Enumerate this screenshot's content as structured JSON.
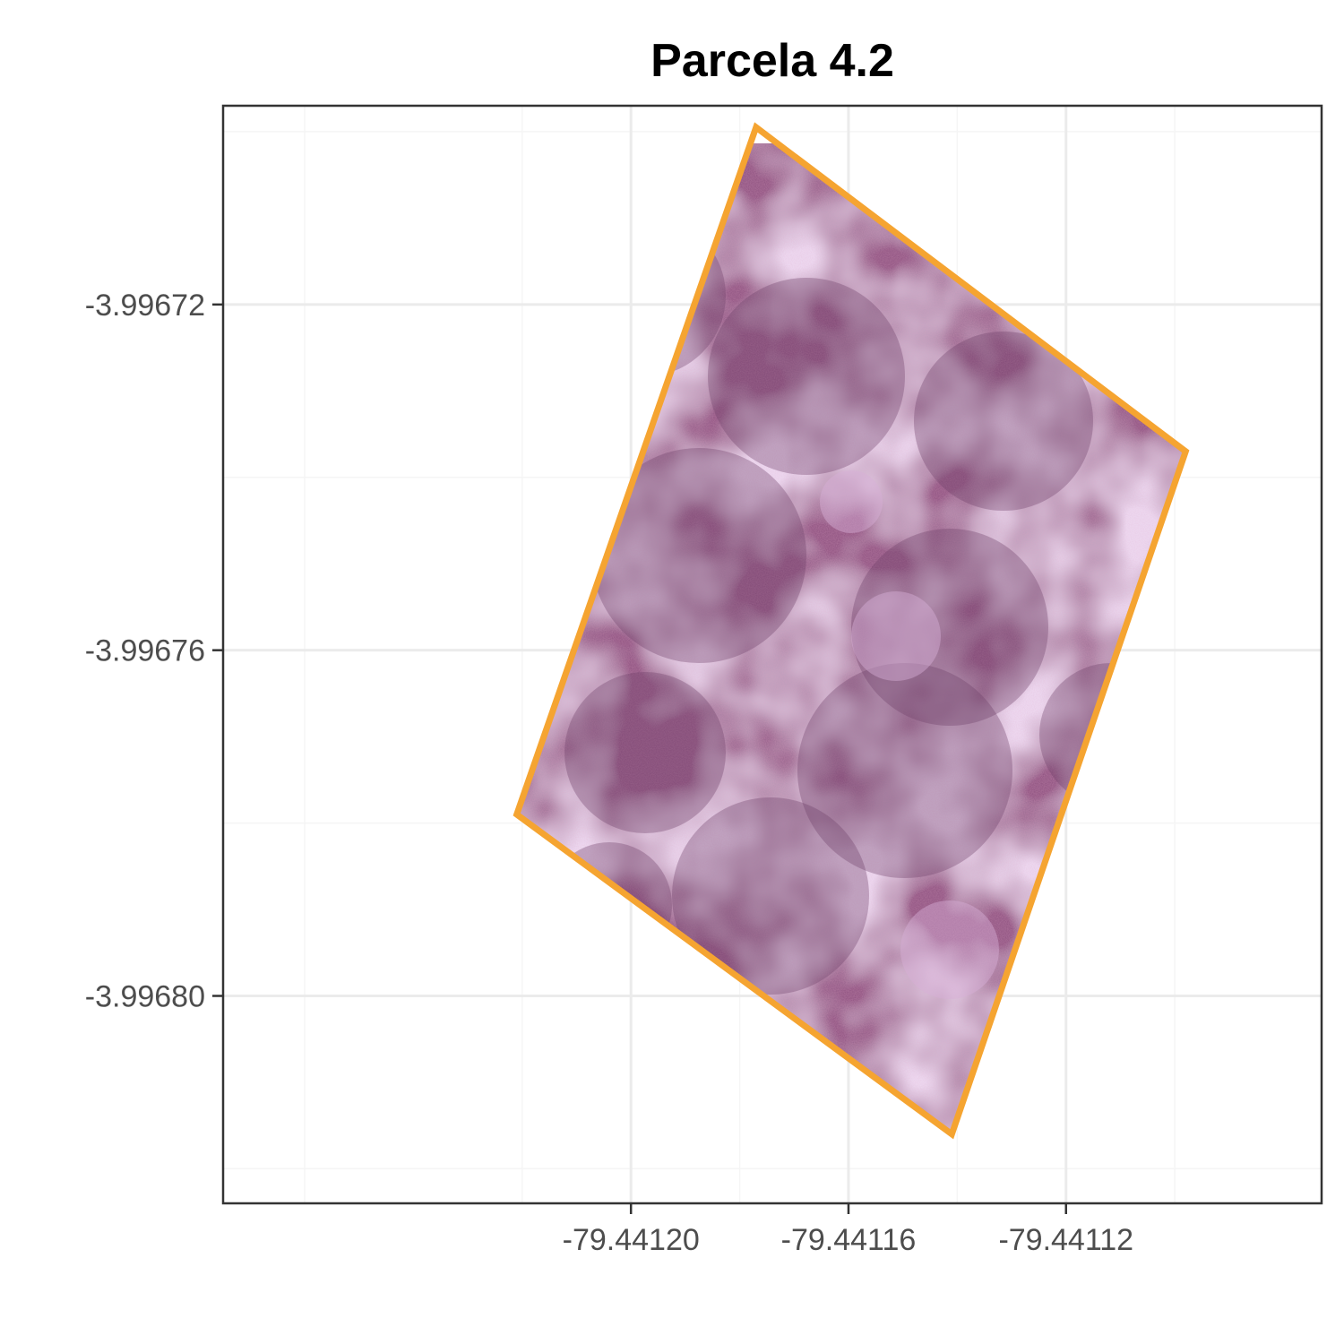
{
  "title": "Parcela 4.2",
  "chart_data": {
    "type": "map",
    "title": "Parcela 4.2",
    "xlabel": "",
    "ylabel": "",
    "x_ticks": [
      -79.4412,
      -79.44116,
      -79.44112
    ],
    "x_tick_labels": [
      "-79.44120",
      "-79.44116",
      "-79.44112"
    ],
    "y_ticks": [
      -3.99672,
      -3.99676,
      -3.9968
    ],
    "y_tick_labels": [
      "-3.99672",
      "-3.99676",
      "-3.99680"
    ],
    "xlim": [
      -79.441275,
      -79.441073
    ],
    "ylim": [
      -3.996824,
      -3.996697
    ],
    "grid": true,
    "polygon": {
      "name": "",
      "outline_color": "#f5a431",
      "vertices": [
        [
          -79.441177,
          -3.9966995
        ],
        [
          -79.441098,
          -3.996737
        ],
        [
          -79.441141,
          -3.996816
        ],
        [
          -79.441221,
          -3.996779
        ]
      ]
    },
    "raster": {
      "description_colors": [
        "#8a4e7e",
        "#a05a92",
        "#c08ab8",
        "#6e3f66",
        "#d6b0d8"
      ]
    }
  },
  "colors": {
    "panel_border": "#333333",
    "grid_major": "#ebebeb",
    "grid_minor": "#f5f5f5",
    "outline": "#f5a431"
  }
}
